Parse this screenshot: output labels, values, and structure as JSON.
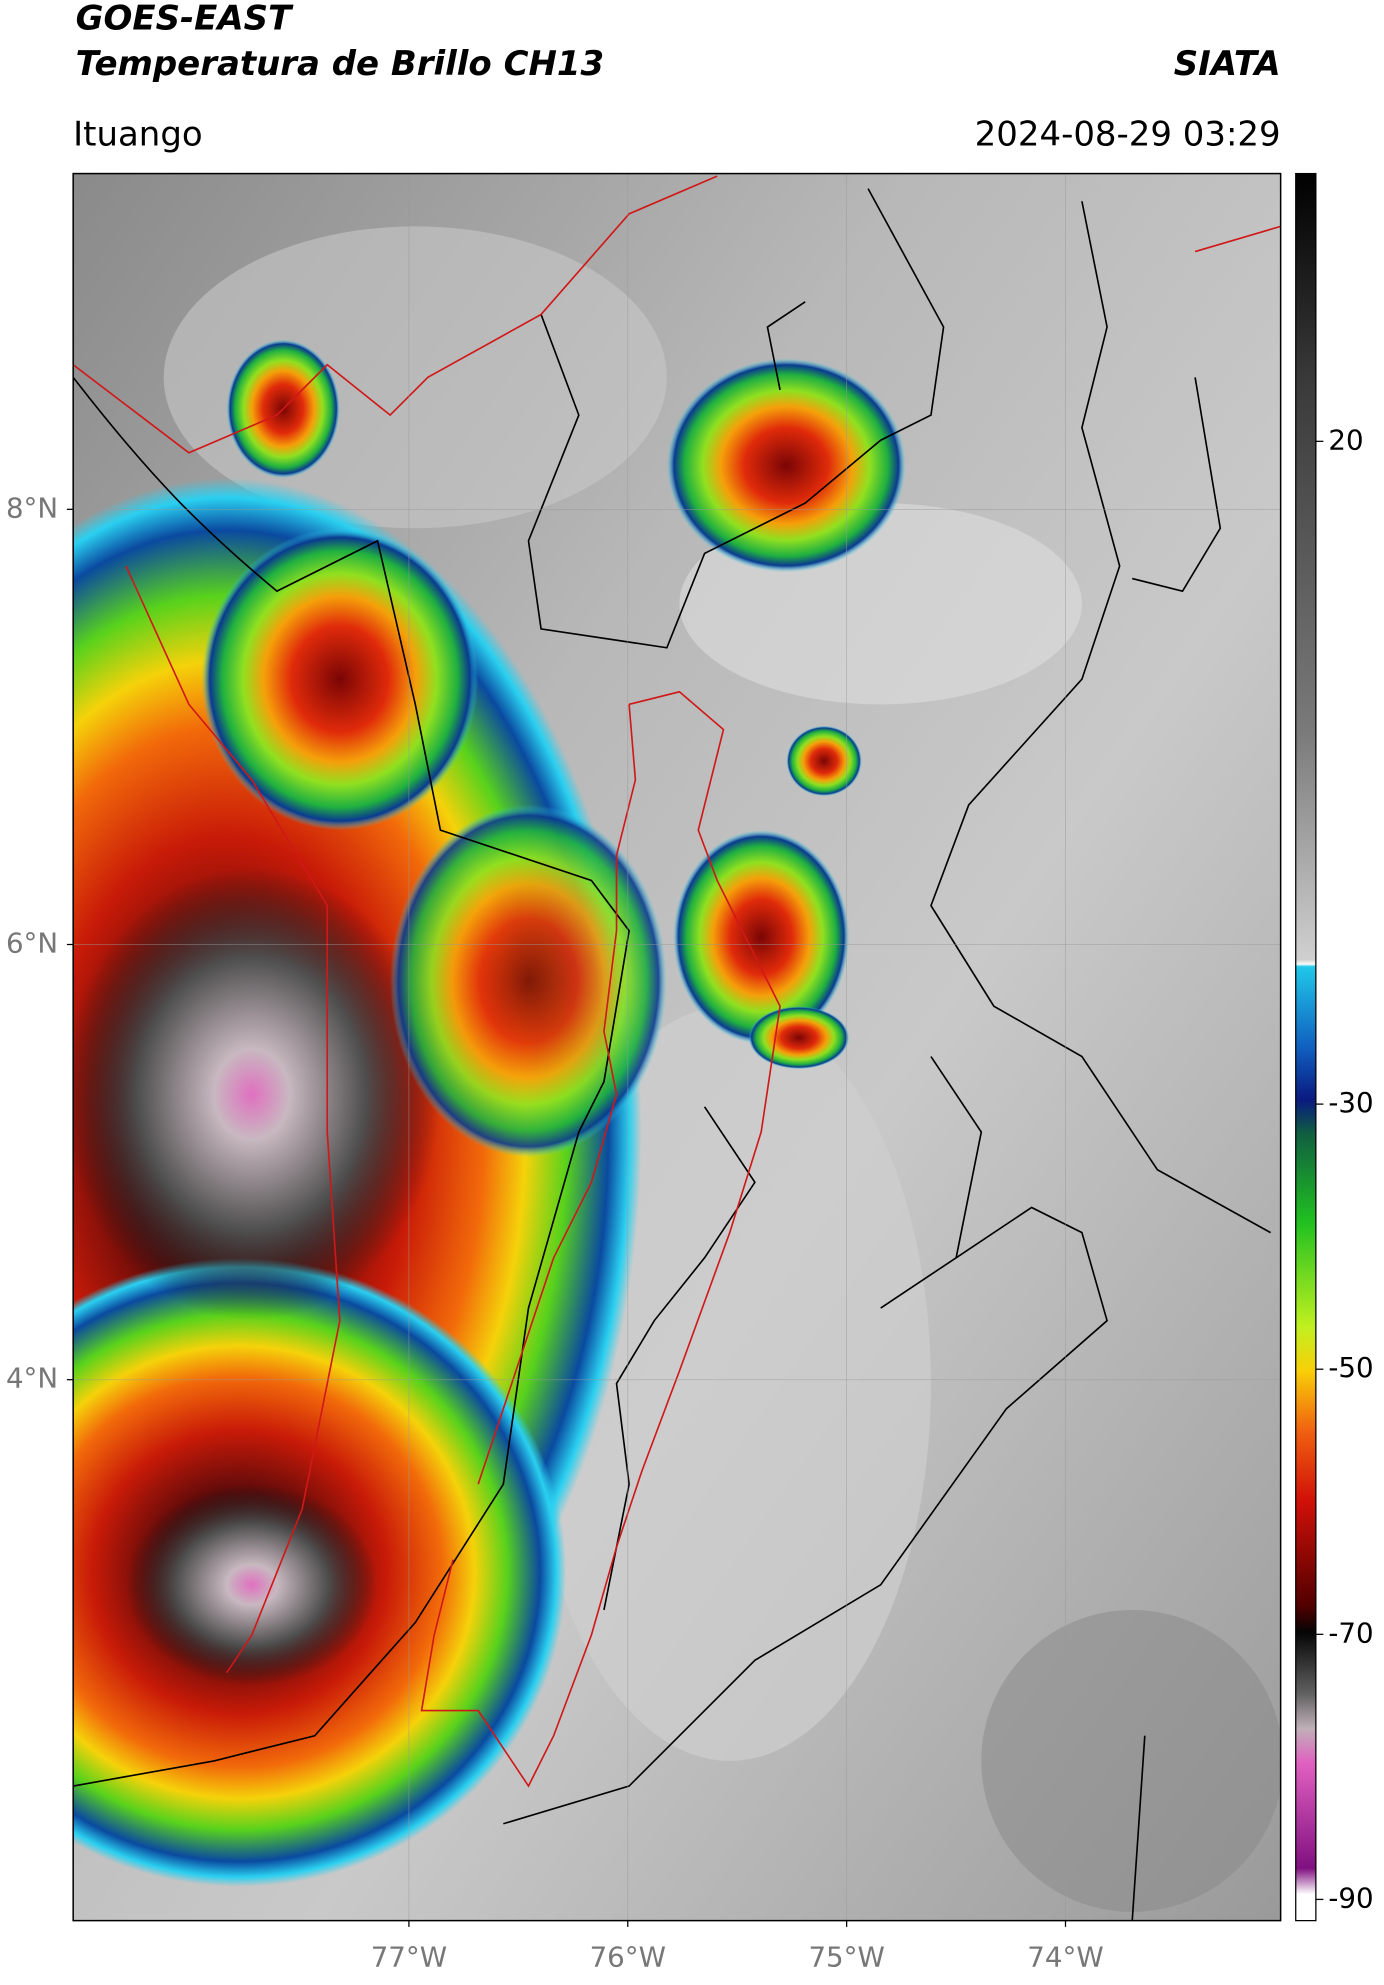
{
  "header": {
    "title": "GOES-EAST",
    "subtitle": "Temperatura de Brillo CH13",
    "brand": "SIATA",
    "location": "Ituango",
    "datetime": "2024-08-29 03:29"
  },
  "map": {
    "xlim": [
      -78.534,
      -73.017
    ],
    "ylim": [
      1.514,
      9.543
    ],
    "xticks": [
      {
        "value": -77,
        "label": "77°W"
      },
      {
        "value": -76,
        "label": "76°W"
      },
      {
        "value": -75,
        "label": "75°W"
      },
      {
        "value": -74,
        "label": "74°W"
      }
    ],
    "yticks": [
      {
        "value": 8,
        "label": "8°N"
      },
      {
        "value": 6,
        "label": "6°N"
      },
      {
        "value": 4,
        "label": "4°N"
      }
    ],
    "grid": true
  },
  "colorbar": {
    "clim": [
      -91.6,
      40.2
    ],
    "ticks": [
      20,
      -30,
      -50,
      -70,
      -90
    ]
  }
}
